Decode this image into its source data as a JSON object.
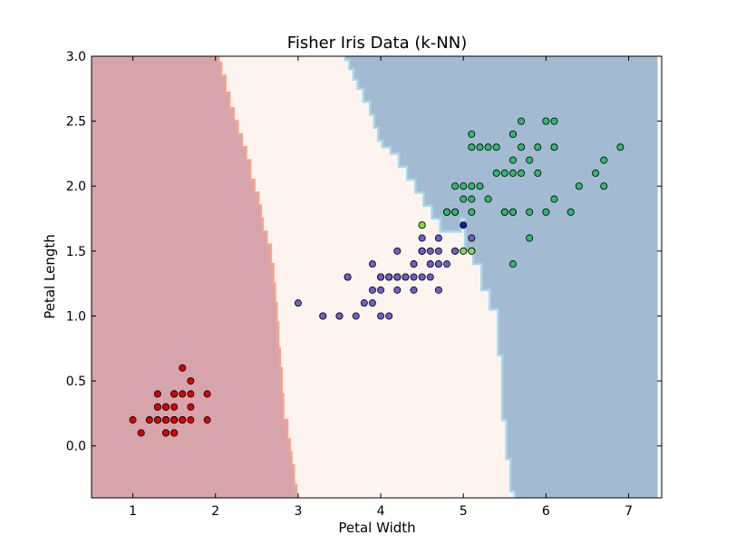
{
  "chart_data": {
    "type": "scatter",
    "title": "Fisher Iris Data (k-NN)",
    "xlabel": "Petal Width",
    "ylabel": "Petal Length",
    "xlim": [
      0.5,
      7.4
    ],
    "ylim": [
      -0.4,
      3.0
    ],
    "xticks": [
      1,
      2,
      3,
      4,
      5,
      6,
      7
    ],
    "yticks": [
      0.0,
      0.5,
      1.0,
      1.5,
      2.0,
      2.5,
      3.0
    ],
    "xtick_labels": [
      "1",
      "2",
      "3",
      "4",
      "5",
      "6",
      "7"
    ],
    "ytick_labels": [
      "0.0",
      "0.5",
      "1.0",
      "1.5",
      "2.0",
      "2.5",
      "3.0"
    ],
    "grid": false,
    "legend": "none",
    "colors": {
      "region_class_1": "#d8a4ab",
      "region_class_2": "#fdf4ef",
      "region_class_3": "#a3bad3",
      "boundary_1_2": "#f2a58d",
      "boundary_2_3": "#a9d7ea",
      "class_1": "#dd0000",
      "class_2": "#6a60c8",
      "class_3": "#2dbb6b",
      "misclassified_green": "#7fdb57",
      "misclassified_blue": "#1a1aa0",
      "marker_edge": "#000000"
    },
    "regions": [
      {
        "class": 1,
        "boundary": [
          [
            2.04,
            3.0
          ],
          [
            2.04,
            2.95
          ],
          [
            2.07,
            2.95
          ],
          [
            2.07,
            2.85
          ],
          [
            2.12,
            2.85
          ],
          [
            2.12,
            2.72
          ],
          [
            2.17,
            2.72
          ],
          [
            2.17,
            2.6
          ],
          [
            2.22,
            2.6
          ],
          [
            2.22,
            2.5
          ],
          [
            2.27,
            2.5
          ],
          [
            2.27,
            2.4
          ],
          [
            2.32,
            2.4
          ],
          [
            2.32,
            2.3
          ],
          [
            2.37,
            2.3
          ],
          [
            2.37,
            2.2
          ],
          [
            2.42,
            2.2
          ],
          [
            2.42,
            2.05
          ],
          [
            2.47,
            2.05
          ],
          [
            2.47,
            1.95
          ],
          [
            2.52,
            1.95
          ],
          [
            2.52,
            1.85
          ],
          [
            2.55,
            1.85
          ],
          [
            2.55,
            1.75
          ],
          [
            2.57,
            1.75
          ],
          [
            2.57,
            1.65
          ],
          [
            2.62,
            1.65
          ],
          [
            2.62,
            1.55
          ],
          [
            2.67,
            1.55
          ],
          [
            2.67,
            1.4
          ],
          [
            2.7,
            1.4
          ],
          [
            2.7,
            1.25
          ],
          [
            2.72,
            1.25
          ],
          [
            2.72,
            1.1
          ],
          [
            2.74,
            1.1
          ],
          [
            2.74,
            0.95
          ],
          [
            2.76,
            0.95
          ],
          [
            2.76,
            0.75
          ],
          [
            2.78,
            0.75
          ],
          [
            2.78,
            0.6
          ],
          [
            2.8,
            0.6
          ],
          [
            2.8,
            0.4
          ],
          [
            2.82,
            0.4
          ],
          [
            2.82,
            0.2
          ],
          [
            2.87,
            0.2
          ],
          [
            2.87,
            0.05
          ],
          [
            2.9,
            0.05
          ],
          [
            2.9,
            -0.05
          ],
          [
            2.92,
            -0.05
          ],
          [
            2.92,
            -0.15
          ],
          [
            2.95,
            -0.15
          ],
          [
            2.95,
            -0.3
          ],
          [
            2.98,
            -0.3
          ],
          [
            2.98,
            -0.4
          ]
        ]
      },
      {
        "class": 3,
        "boundary": [
          [
            3.57,
            3.0
          ],
          [
            3.57,
            2.97
          ],
          [
            3.62,
            2.97
          ],
          [
            3.62,
            2.9
          ],
          [
            3.67,
            2.9
          ],
          [
            3.67,
            2.82
          ],
          [
            3.72,
            2.82
          ],
          [
            3.72,
            2.75
          ],
          [
            3.79,
            2.75
          ],
          [
            3.79,
            2.65
          ],
          [
            3.87,
            2.65
          ],
          [
            3.87,
            2.55
          ],
          [
            3.92,
            2.55
          ],
          [
            3.92,
            2.45
          ],
          [
            3.97,
            2.45
          ],
          [
            3.97,
            2.35
          ],
          [
            4.02,
            2.35
          ],
          [
            4.02,
            2.3
          ],
          [
            4.12,
            2.3
          ],
          [
            4.12,
            2.25
          ],
          [
            4.22,
            2.25
          ],
          [
            4.22,
            2.15
          ],
          [
            4.32,
            2.15
          ],
          [
            4.32,
            2.05
          ],
          [
            4.42,
            2.05
          ],
          [
            4.42,
            1.95
          ],
          [
            4.52,
            1.95
          ],
          [
            4.52,
            1.85
          ],
          [
            4.62,
            1.85
          ],
          [
            4.62,
            1.75
          ],
          [
            4.72,
            1.75
          ],
          [
            4.72,
            1.65
          ],
          [
            4.97,
            1.65
          ],
          [
            4.97,
            1.75
          ],
          [
            5.02,
            1.75
          ],
          [
            5.02,
            1.5
          ],
          [
            5.12,
            1.5
          ],
          [
            5.12,
            1.4
          ],
          [
            5.22,
            1.4
          ],
          [
            5.22,
            1.2
          ],
          [
            5.32,
            1.2
          ],
          [
            5.32,
            1.05
          ],
          [
            5.42,
            1.05
          ],
          [
            5.42,
            0.7
          ],
          [
            5.47,
            0.7
          ],
          [
            5.47,
            0.2
          ],
          [
            5.52,
            0.2
          ],
          [
            5.52,
            -0.1
          ],
          [
            5.57,
            -0.1
          ],
          [
            5.57,
            -0.35
          ],
          [
            5.62,
            -0.35
          ],
          [
            5.62,
            -0.4
          ]
        ]
      }
    ],
    "series": [
      {
        "class": 1,
        "x": [
          1.4,
          1.4,
          1.3,
          1.5,
          1.4,
          1.7,
          1.4,
          1.5,
          1.4,
          1.5,
          1.5,
          1.6,
          1.4,
          1.1,
          1.2,
          1.5,
          1.3,
          1.4,
          1.7,
          1.5,
          1.7,
          1.5,
          1.0,
          1.7,
          1.9,
          1.6,
          1.6,
          1.5,
          1.4,
          1.6,
          1.6,
          1.5,
          1.5,
          1.4,
          1.5,
          1.2,
          1.3,
          1.4,
          1.3,
          1.5,
          1.3,
          1.3,
          1.3,
          1.6,
          1.9,
          1.4,
          1.6,
          1.4,
          1.5,
          1.4
        ],
        "y": [
          0.2,
          0.2,
          0.2,
          0.2,
          0.2,
          0.4,
          0.3,
          0.2,
          0.2,
          0.1,
          0.2,
          0.2,
          0.1,
          0.1,
          0.2,
          0.4,
          0.4,
          0.3,
          0.3,
          0.3,
          0.2,
          0.4,
          0.2,
          0.5,
          0.2,
          0.2,
          0.4,
          0.2,
          0.2,
          0.2,
          0.2,
          0.4,
          0.1,
          0.2,
          0.2,
          0.2,
          0.2,
          0.1,
          0.2,
          0.2,
          0.3,
          0.3,
          0.2,
          0.6,
          0.4,
          0.3,
          0.2,
          0.2,
          0.2,
          0.2
        ]
      },
      {
        "class": 2,
        "x": [
          4.7,
          4.5,
          4.9,
          4.0,
          4.6,
          4.5,
          4.7,
          3.3,
          4.6,
          3.9,
          3.5,
          4.2,
          4.0,
          4.7,
          3.6,
          4.4,
          4.5,
          4.1,
          4.5,
          3.9,
          4.0,
          4.9,
          4.7,
          4.3,
          4.4,
          4.8,
          3.5,
          3.8,
          3.7,
          3.9,
          5.1,
          4.5,
          4.5,
          4.7,
          4.4,
          4.1,
          4.0,
          4.4,
          4.6,
          4.0,
          3.3,
          4.2,
          4.2,
          4.2,
          4.3,
          3.0,
          4.1,
          4.6,
          4.5,
          4.1,
          4.2,
          3.6
        ],
        "y": [
          1.4,
          1.5,
          1.5,
          1.3,
          1.5,
          1.3,
          1.6,
          1.0,
          1.3,
          1.4,
          1.0,
          1.5,
          1.0,
          1.4,
          1.3,
          1.4,
          1.5,
          1.0,
          1.5,
          1.1,
          1.3,
          1.5,
          1.2,
          1.3,
          1.4,
          1.4,
          1.0,
          1.1,
          1.0,
          1.2,
          1.6,
          1.6,
          1.5,
          1.5,
          1.3,
          1.3,
          1.3,
          1.2,
          1.4,
          1.2,
          1.0,
          1.3,
          1.2,
          1.3,
          1.3,
          1.1,
          1.3,
          1.4,
          1.5,
          1.3,
          1.3,
          1.3
        ]
      },
      {
        "class": 3,
        "x": [
          6.0,
          5.1,
          5.9,
          5.6,
          5.8,
          6.6,
          4.5,
          6.3,
          5.8,
          6.1,
          5.1,
          5.3,
          5.5,
          5.0,
          5.1,
          5.3,
          5.5,
          6.7,
          6.9,
          5.0,
          5.7,
          4.9,
          6.7,
          4.9,
          5.7,
          6.0,
          4.8,
          4.9,
          5.6,
          5.8,
          6.1,
          6.4,
          5.6,
          5.1,
          5.6,
          6.1,
          5.6,
          5.5,
          4.8,
          5.4,
          5.6,
          5.1,
          5.9,
          5.7,
          5.2,
          5.0,
          5.2,
          5.4,
          5.1,
          5.6
        ],
        "y": [
          2.5,
          1.9,
          2.1,
          1.8,
          2.2,
          2.1,
          1.7,
          1.8,
          1.8,
          2.5,
          2.0,
          1.9,
          2.1,
          2.0,
          2.4,
          2.3,
          1.8,
          2.2,
          2.3,
          1.5,
          2.3,
          2.0,
          2.0,
          1.8,
          2.1,
          1.8,
          1.8,
          1.8,
          2.1,
          1.6,
          1.9,
          2.0,
          2.2,
          1.5,
          1.4,
          2.3,
          2.4,
          1.8,
          1.8,
          2.1,
          2.4,
          2.3,
          2.3,
          2.5,
          2.3,
          1.9,
          2.0,
          2.3,
          1.8,
          1.8
        ]
      }
    ],
    "highlighted_points": [
      {
        "x": 4.5,
        "y": 1.7,
        "color": "misclassified_green"
      },
      {
        "x": 5.0,
        "y": 1.5,
        "color": "misclassified_green"
      },
      {
        "x": 5.1,
        "y": 1.5,
        "color": "misclassified_green"
      },
      {
        "x": 5.0,
        "y": 1.7,
        "color": "misclassified_blue"
      }
    ]
  }
}
